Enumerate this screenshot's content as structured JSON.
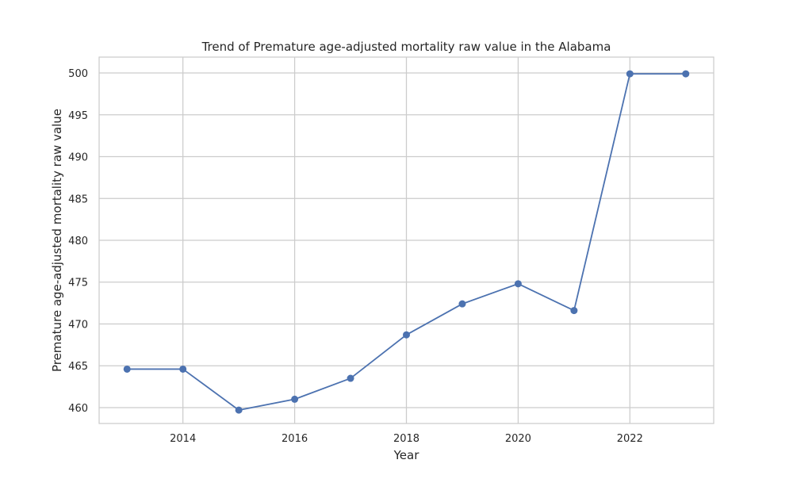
{
  "chart_data": {
    "type": "line",
    "title": "Trend of Premature age-adjusted mortality raw value in the Alabama",
    "xlabel": "Year",
    "ylabel": "Premature age-adjusted mortality raw value",
    "x": [
      2013,
      2014,
      2015,
      2016,
      2017,
      2018,
      2019,
      2020,
      2021,
      2022,
      2023
    ],
    "series": [
      {
        "values": [
          464.6,
          464.6,
          459.7,
          461.0,
          463.5,
          468.7,
          472.4,
          474.8,
          471.6,
          499.9,
          499.9
        ]
      }
    ],
    "xlim": [
      2012.5,
      2023.5
    ],
    "ylim": [
      458.1,
      501.9
    ],
    "x_ticks": [
      2014,
      2016,
      2018,
      2020,
      2022
    ],
    "y_ticks": [
      460,
      465,
      470,
      475,
      480,
      485,
      490,
      495,
      500
    ],
    "grid": true,
    "legend": "none",
    "colors": {
      "line": "#4c72b0",
      "grid": "#cccccc",
      "frame": "#cccccc",
      "text": "#262626"
    }
  }
}
